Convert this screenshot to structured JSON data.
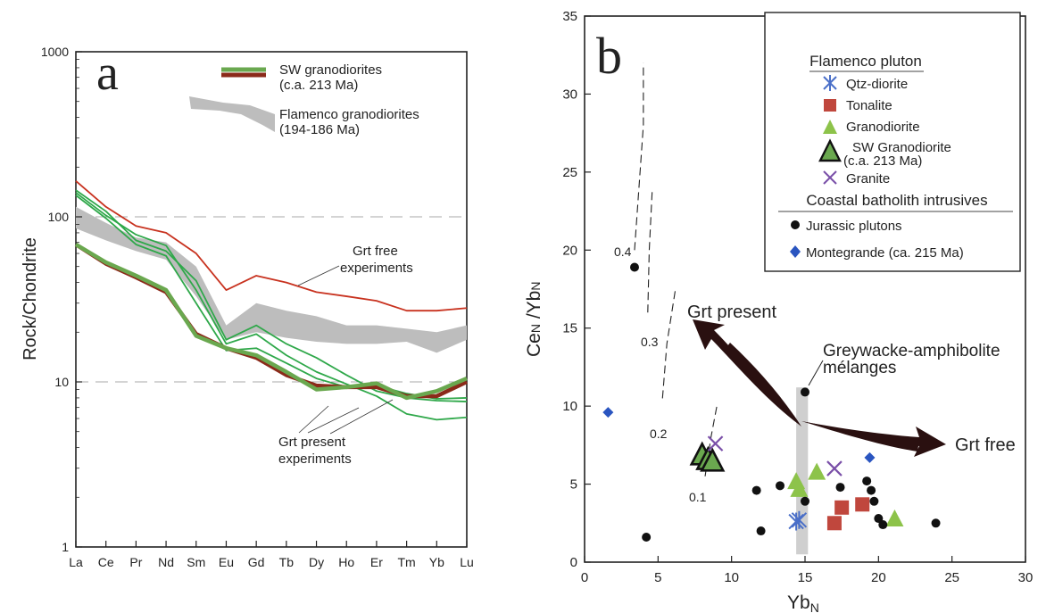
{
  "colors": {
    "green": "#2fa84a",
    "red": "#c8321f",
    "brown": "#8b2a1a",
    "olive": "#6aa84f",
    "grey_band": "#bdbdbd",
    "qtz_blue": "#4a6fc8",
    "tonalite": "#c0473d",
    "granodiorite": "#8dc34a",
    "granite": "#7a4fa8",
    "montegrande": "#2a55c0",
    "arrow": "#2a1010"
  },
  "chart_data": [
    {
      "type": "line",
      "panel_letter": "a",
      "ylabel": "Rock/Chondrite",
      "xlabel": "",
      "yscale": "log",
      "ylim": [
        1,
        1000
      ],
      "yticks": [
        "1",
        "10",
        "100",
        "1000"
      ],
      "categories": [
        "La",
        "Ce",
        "Pr",
        "Nd",
        "Sm",
        "Eu",
        "Gd",
        "Tb",
        "Dy",
        "Ho",
        "Er",
        "Tm",
        "Yb",
        "Lu"
      ],
      "legend": {
        "sw": [
          "SW granodiorites",
          "(c.a. 213 Ma)"
        ],
        "flamenco": [
          "Flamenco granodiorites",
          "(194-186 Ma)"
        ]
      },
      "annotations": {
        "grt_free": [
          "Grt free",
          "experiments"
        ],
        "grt_present": [
          "Grt present",
          "experiments"
        ]
      },
      "gridlines_dashed": [
        10,
        100
      ],
      "series": [
        {
          "name": "Grt free experiments",
          "color": "red",
          "values": [
            165,
            115,
            88,
            80,
            60,
            36,
            44,
            40,
            35,
            33,
            31,
            27,
            27,
            28
          ]
        },
        {
          "color": "green",
          "values": [
            145,
            108,
            72,
            62,
            41,
            18,
            22,
            17,
            14,
            11,
            8.8,
            8.0,
            7.7,
            7.6
          ]
        },
        {
          "color": "green",
          "values": [
            140,
            102,
            78,
            67,
            36,
            17,
            19.5,
            14.5,
            11.5,
            9.7,
            8.2,
            6.4,
            5.9,
            6.1
          ]
        },
        {
          "color": "green",
          "values": [
            135,
            98,
            68,
            58,
            30,
            15.5,
            16,
            13,
            10.5,
            9.3,
            9.5,
            8.5,
            7.9,
            8.0
          ]
        },
        {
          "name": "SW granodiorites",
          "color": "brown",
          "values": [
            68,
            52,
            43,
            35,
            19.5,
            16,
            14,
            11,
            9.5,
            9.3,
            9.3,
            8.2,
            8.2,
            10
          ]
        },
        {
          "name": "SW granodiorites",
          "color": "olive",
          "values": [
            68,
            53,
            44,
            36,
            19,
            16,
            14.5,
            11.5,
            9.0,
            9.3,
            9.8,
            8.0,
            8.8,
            10.5
          ]
        }
      ],
      "band": {
        "name": "Flamenco granodiorites",
        "upper": [
          115,
          92,
          75,
          70,
          50,
          22,
          30,
          27,
          25,
          22,
          22,
          21,
          20,
          22
        ],
        "lower": [
          85,
          72,
          62,
          55,
          33,
          18,
          20,
          18.5,
          17.5,
          17,
          17,
          17.5,
          15,
          18
        ]
      }
    },
    {
      "type": "scatter",
      "panel_letter": "b",
      "xlabel": "Yb",
      "xlabel_sub": "N",
      "ylabel": "Ce",
      "ylabel_parts": [
        "Ce",
        "N",
        " /Yb",
        "N"
      ],
      "xlim": [
        0,
        30
      ],
      "ylim": [
        0,
        35
      ],
      "xticks": [
        0,
        5,
        10,
        15,
        20,
        25,
        30
      ],
      "yticks": [
        0,
        5,
        10,
        15,
        20,
        25,
        30,
        35
      ],
      "legend": {
        "header1": "Flamenco pluton",
        "items1": [
          "Qtz-diorite",
          "Tonalite",
          "Granodiorite",
          "SW Granodiorite",
          "(c.a. 213 Ma)",
          "Granite"
        ],
        "header2": "Coastal batholith intrusives",
        "items2": [
          "Jurassic plutons",
          "Montegrande (ca. 215 Ma)"
        ]
      },
      "annotations": {
        "grt_present": "Grt present",
        "grt_free": "Grt free",
        "greywacke": [
          "Greywacke-amphibolite",
          "mélanges"
        ],
        "fractions": [
          "0.4",
          "0.3",
          "0.2",
          "0.1"
        ]
      },
      "series": [
        {
          "name": "Qtz-diorite",
          "points": [
            [
              14.4,
              2.6
            ],
            [
              14.6,
              2.7
            ]
          ]
        },
        {
          "name": "Tonalite",
          "points": [
            [
              17.0,
              2.5
            ],
            [
              17.5,
              3.5
            ],
            [
              18.9,
              3.7
            ]
          ]
        },
        {
          "name": "Granodiorite",
          "points": [
            [
              14.4,
              5.2
            ],
            [
              14.6,
              4.7
            ],
            [
              15.8,
              5.8
            ],
            [
              21.1,
              2.8
            ]
          ]
        },
        {
          "name": "SW Granodiorite",
          "points": [
            [
              8.0,
              6.9
            ],
            [
              8.4,
              6.6
            ],
            [
              8.7,
              6.5
            ]
          ]
        },
        {
          "name": "Granite",
          "points": [
            [
              8.9,
              7.6
            ],
            [
              17.0,
              6.0
            ]
          ]
        },
        {
          "name": "Jurassic plutons",
          "points": [
            [
              3.4,
              18.9
            ],
            [
              4.2,
              1.6
            ],
            [
              11.7,
              4.6
            ],
            [
              12.0,
              2.0
            ],
            [
              13.3,
              4.9
            ],
            [
              15.0,
              3.9
            ],
            [
              15.0,
              10.9
            ],
            [
              17.4,
              4.8
            ],
            [
              19.2,
              5.2
            ],
            [
              19.5,
              4.6
            ],
            [
              19.7,
              3.9
            ],
            [
              20.0,
              2.8
            ],
            [
              20.3,
              2.4
            ],
            [
              23.9,
              2.5
            ]
          ]
        },
        {
          "name": "Montegrande (ca. 215 Ma)",
          "points": [
            [
              1.6,
              9.6
            ],
            [
              19.4,
              6.7
            ]
          ]
        }
      ],
      "fraction_curves": [
        {
          "label": "0.4",
          "points": [
            [
              3.4,
              20.0
            ],
            [
              3.7,
              24.0
            ],
            [
              4.0,
              28.0
            ],
            [
              4.0,
              32.0
            ]
          ]
        },
        {
          "label": "0.3",
          "points": [
            [
              4.3,
              16.0
            ],
            [
              4.4,
              20.0
            ],
            [
              4.6,
              23.8
            ]
          ]
        },
        {
          "label": "0.2",
          "points": [
            [
              5.3,
              10.5
            ],
            [
              5.6,
              14.0
            ],
            [
              6.2,
              17.6
            ]
          ]
        },
        {
          "label": "0.1",
          "points": [
            [
              8.2,
              5.5
            ],
            [
              8.6,
              8.0
            ],
            [
              9.0,
              10.0
            ]
          ]
        }
      ],
      "band_x": [
        14.4,
        15.2
      ],
      "band_y": [
        0.5,
        11.2
      ]
    }
  ]
}
